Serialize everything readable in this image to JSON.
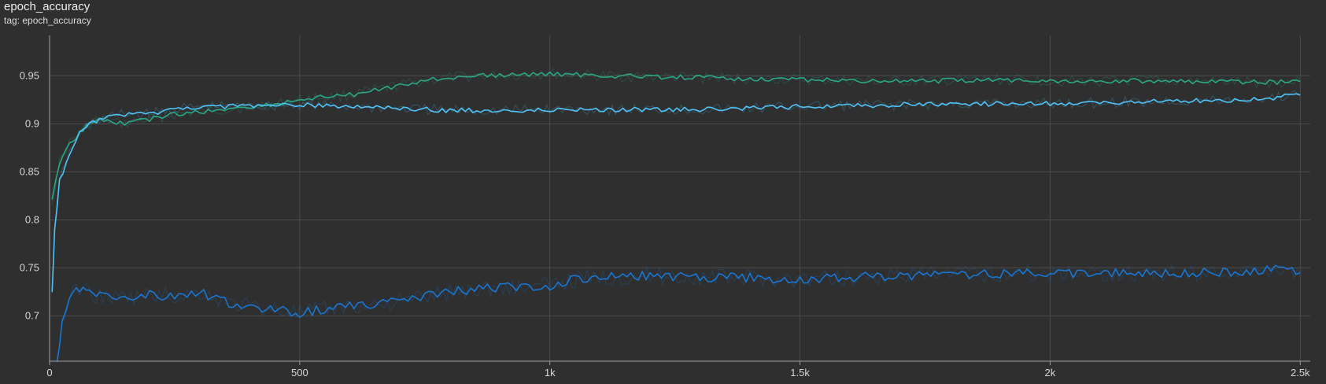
{
  "card": {
    "title": "epoch_accuracy",
    "tag": "tag: epoch_accuracy"
  },
  "chart_data": {
    "type": "line",
    "title": "epoch_accuracy",
    "xlabel": "",
    "ylabel": "",
    "xlim": [
      0,
      2520
    ],
    "ylim": [
      0.653,
      0.992
    ],
    "grid": true,
    "x_ticks": [
      0,
      500,
      1000,
      1500,
      2000,
      2500
    ],
    "x_tick_labels": [
      "0",
      "500",
      "1k",
      "1.5k",
      "2k",
      "2.5k"
    ],
    "y_ticks": [
      0.7,
      0.75,
      0.8,
      0.85,
      0.9,
      0.95
    ],
    "y_tick_labels": [
      "0.7",
      "0.75",
      "0.8",
      "0.85",
      "0.9",
      "0.95"
    ],
    "series": [
      {
        "color": "#2aa784",
        "x": [
          5,
          20,
          40,
          60,
          80,
          100,
          150,
          200,
          250,
          300,
          350,
          400,
          450,
          500,
          550,
          600,
          650,
          700,
          750,
          800,
          850,
          900,
          950,
          1000,
          1100,
          1200,
          1300,
          1400,
          1500,
          1600,
          1700,
          1800,
          1900,
          2000,
          2100,
          2200,
          2300,
          2400,
          2500
        ],
        "values": [
          0.82,
          0.86,
          0.88,
          0.89,
          0.9,
          0.905,
          0.9,
          0.905,
          0.91,
          0.912,
          0.915,
          0.918,
          0.92,
          0.925,
          0.928,
          0.93,
          0.935,
          0.94,
          0.945,
          0.948,
          0.95,
          0.95,
          0.951,
          0.952,
          0.95,
          0.949,
          0.948,
          0.947,
          0.946,
          0.945,
          0.944,
          0.945,
          0.946,
          0.945,
          0.944,
          0.945,
          0.944,
          0.943,
          0.944
        ]
      },
      {
        "color": "#4fc3f7",
        "x": [
          5,
          10,
          20,
          40,
          60,
          80,
          100,
          150,
          200,
          250,
          300,
          350,
          400,
          450,
          500,
          600,
          700,
          800,
          900,
          1000,
          1100,
          1200,
          1300,
          1400,
          1500,
          1600,
          1700,
          1800,
          1900,
          2000,
          2100,
          2200,
          2300,
          2400,
          2500
        ],
        "values": [
          0.725,
          0.79,
          0.84,
          0.87,
          0.89,
          0.9,
          0.905,
          0.91,
          0.91,
          0.915,
          0.918,
          0.918,
          0.918,
          0.919,
          0.92,
          0.918,
          0.916,
          0.914,
          0.914,
          0.915,
          0.915,
          0.915,
          0.915,
          0.916,
          0.918,
          0.919,
          0.92,
          0.92,
          0.921,
          0.921,
          0.922,
          0.923,
          0.924,
          0.925,
          0.93
        ]
      },
      {
        "color": "#1976d2",
        "x": [
          15,
          25,
          40,
          60,
          80,
          100,
          150,
          200,
          250,
          300,
          350,
          400,
          450,
          500,
          550,
          600,
          650,
          700,
          750,
          800,
          850,
          900,
          950,
          1000,
          1050,
          1100,
          1200,
          1300,
          1400,
          1500,
          1600,
          1700,
          1800,
          1900,
          2000,
          2100,
          2200,
          2300,
          2400,
          2450,
          2500
        ],
        "values": [
          0.655,
          0.69,
          0.72,
          0.73,
          0.725,
          0.72,
          0.718,
          0.722,
          0.72,
          0.725,
          0.715,
          0.71,
          0.708,
          0.703,
          0.707,
          0.71,
          0.712,
          0.715,
          0.72,
          0.725,
          0.728,
          0.73,
          0.73,
          0.732,
          0.738,
          0.74,
          0.742,
          0.74,
          0.74,
          0.738,
          0.74,
          0.742,
          0.743,
          0.744,
          0.745,
          0.745,
          0.744,
          0.745,
          0.746,
          0.75,
          0.745
        ]
      }
    ]
  }
}
